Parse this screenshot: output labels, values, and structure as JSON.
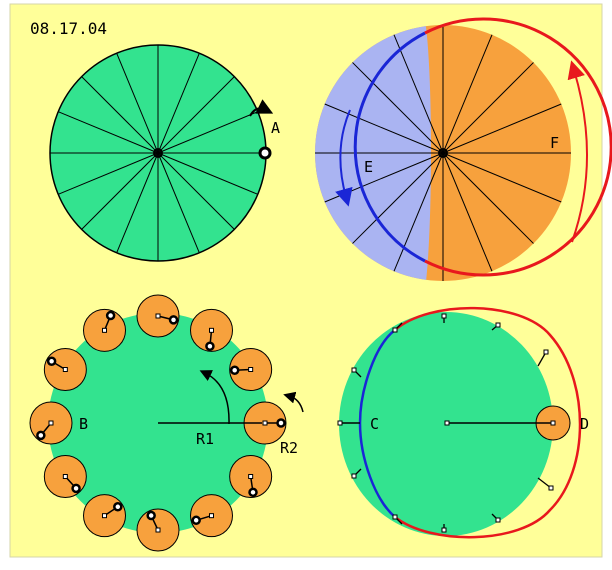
{
  "date": "08.17.04",
  "labels": {
    "a": "A",
    "e": "E",
    "f": "F",
    "b": "B",
    "r1": "R1",
    "r2": "R2",
    "c": "C",
    "d": "D"
  },
  "colors": {
    "background": "#ffff99",
    "panel_border": "#d6d6a8",
    "green": "#33e38f",
    "orange": "#f7a13d",
    "lavender": "#aab4f2",
    "red": "#e8181d",
    "blue": "#1a26d6",
    "ink": "#000000"
  },
  "wheel_segments": 16,
  "small_circle_count": 12
}
